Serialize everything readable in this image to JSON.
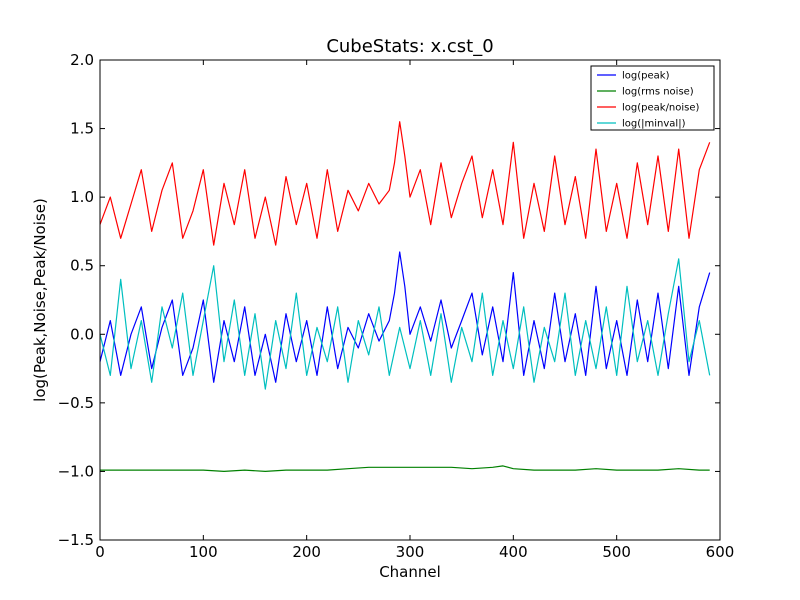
{
  "chart_data": {
    "type": "line",
    "title": "CubeStats: x.cst_0",
    "xlabel": "Channel",
    "ylabel": "log(Peak,Noise,Peak/Noise)",
    "xlim": [
      0,
      600
    ],
    "ylim": [
      -1.5,
      2.0
    ],
    "xticks": [
      0,
      100,
      200,
      300,
      400,
      500,
      600
    ],
    "xtick_labels": [
      "0",
      "100",
      "200",
      "300",
      "400",
      "500",
      "600"
    ],
    "yticks": [
      -1.5,
      -1.0,
      -0.5,
      0.0,
      0.5,
      1.0,
      1.5,
      2.0
    ],
    "ytick_labels": [
      "−1.5",
      "−1.0",
      "−0.5",
      "0.0",
      "0.5",
      "1.0",
      "1.5",
      "2.0"
    ],
    "grid": false,
    "legend": "top-right",
    "series": [
      {
        "name": "log(peak)",
        "color": "#0000ff",
        "x": [
          0,
          10,
          20,
          30,
          40,
          50,
          60,
          70,
          80,
          90,
          100,
          110,
          120,
          130,
          140,
          150,
          160,
          170,
          180,
          190,
          200,
          210,
          220,
          230,
          240,
          250,
          260,
          270,
          280,
          285,
          290,
          295,
          300,
          310,
          320,
          330,
          340,
          350,
          360,
          370,
          380,
          390,
          400,
          410,
          420,
          430,
          440,
          450,
          460,
          470,
          480,
          490,
          500,
          510,
          520,
          530,
          540,
          550,
          560,
          570,
          580,
          590
        ],
        "y": [
          -0.2,
          0.1,
          -0.3,
          0.0,
          0.2,
          -0.25,
          0.05,
          0.25,
          -0.3,
          -0.1,
          0.25,
          -0.35,
          0.1,
          -0.2,
          0.2,
          -0.3,
          0.0,
          -0.35,
          0.15,
          -0.2,
          0.1,
          -0.3,
          0.2,
          -0.25,
          0.05,
          -0.1,
          0.15,
          -0.05,
          0.1,
          0.3,
          0.6,
          0.35,
          0.0,
          0.2,
          -0.05,
          0.25,
          -0.1,
          0.1,
          0.3,
          -0.15,
          0.2,
          -0.2,
          0.45,
          -0.3,
          0.1,
          -0.25,
          0.3,
          -0.2,
          0.15,
          -0.3,
          0.35,
          -0.25,
          0.1,
          -0.3,
          0.25,
          -0.2,
          0.3,
          -0.25,
          0.35,
          -0.3,
          0.2,
          0.45
        ]
      },
      {
        "name": "log(rms noise)",
        "color": "#008000",
        "x": [
          0,
          20,
          40,
          60,
          80,
          100,
          120,
          140,
          160,
          180,
          200,
          220,
          240,
          260,
          280,
          300,
          320,
          340,
          360,
          380,
          390,
          400,
          420,
          440,
          460,
          480,
          500,
          520,
          540,
          560,
          580,
          590
        ],
        "y": [
          -0.99,
          -0.99,
          -0.99,
          -0.99,
          -0.99,
          -0.99,
          -1.0,
          -0.99,
          -1.0,
          -0.99,
          -0.99,
          -0.99,
          -0.98,
          -0.97,
          -0.97,
          -0.97,
          -0.97,
          -0.97,
          -0.98,
          -0.97,
          -0.96,
          -0.98,
          -0.99,
          -0.99,
          -0.99,
          -0.98,
          -0.99,
          -0.99,
          -0.99,
          -0.98,
          -0.99,
          -0.99
        ]
      },
      {
        "name": "log(peak/noise)",
        "color": "#ff0000",
        "x": [
          0,
          10,
          20,
          30,
          40,
          50,
          60,
          70,
          80,
          90,
          100,
          110,
          120,
          130,
          140,
          150,
          160,
          170,
          180,
          190,
          200,
          210,
          220,
          230,
          240,
          250,
          260,
          270,
          280,
          285,
          290,
          295,
          300,
          310,
          320,
          330,
          340,
          350,
          360,
          370,
          380,
          390,
          400,
          410,
          420,
          430,
          440,
          450,
          460,
          470,
          480,
          490,
          500,
          510,
          520,
          530,
          540,
          550,
          560,
          570,
          580,
          590
        ],
        "y": [
          0.8,
          1.0,
          0.7,
          0.95,
          1.2,
          0.75,
          1.05,
          1.25,
          0.7,
          0.9,
          1.2,
          0.65,
          1.1,
          0.8,
          1.2,
          0.7,
          1.0,
          0.65,
          1.15,
          0.8,
          1.1,
          0.7,
          1.2,
          0.75,
          1.05,
          0.9,
          1.1,
          0.95,
          1.05,
          1.25,
          1.55,
          1.3,
          1.0,
          1.2,
          0.8,
          1.25,
          0.85,
          1.1,
          1.3,
          0.85,
          1.2,
          0.8,
          1.4,
          0.7,
          1.1,
          0.75,
          1.3,
          0.8,
          1.15,
          0.7,
          1.35,
          0.75,
          1.1,
          0.7,
          1.25,
          0.8,
          1.3,
          0.75,
          1.35,
          0.7,
          1.2,
          1.4
        ]
      },
      {
        "name": "log(|minval|)",
        "color": "#00bfbf",
        "x": [
          0,
          10,
          20,
          30,
          40,
          50,
          60,
          70,
          80,
          90,
          100,
          110,
          120,
          130,
          140,
          150,
          160,
          170,
          180,
          190,
          200,
          210,
          220,
          230,
          240,
          250,
          260,
          270,
          280,
          290,
          300,
          310,
          320,
          330,
          340,
          350,
          360,
          370,
          380,
          390,
          400,
          410,
          420,
          430,
          440,
          450,
          460,
          470,
          480,
          490,
          500,
          510,
          520,
          530,
          540,
          550,
          560,
          570,
          580,
          590
        ],
        "y": [
          0.0,
          -0.3,
          0.4,
          -0.25,
          0.1,
          -0.35,
          0.2,
          -0.1,
          0.3,
          -0.3,
          0.1,
          0.5,
          -0.2,
          0.25,
          -0.3,
          0.15,
          -0.4,
          0.1,
          -0.25,
          0.3,
          -0.3,
          0.05,
          -0.2,
          0.2,
          -0.35,
          0.1,
          -0.15,
          0.2,
          -0.3,
          0.05,
          -0.25,
          0.1,
          -0.3,
          0.15,
          -0.35,
          0.05,
          -0.2,
          0.3,
          -0.3,
          0.1,
          -0.25,
          0.2,
          -0.35,
          0.05,
          -0.2,
          0.3,
          -0.3,
          0.1,
          -0.25,
          0.2,
          -0.3,
          0.35,
          -0.2,
          0.1,
          -0.3,
          0.15,
          0.55,
          -0.2,
          0.1,
          -0.3
        ]
      }
    ]
  }
}
